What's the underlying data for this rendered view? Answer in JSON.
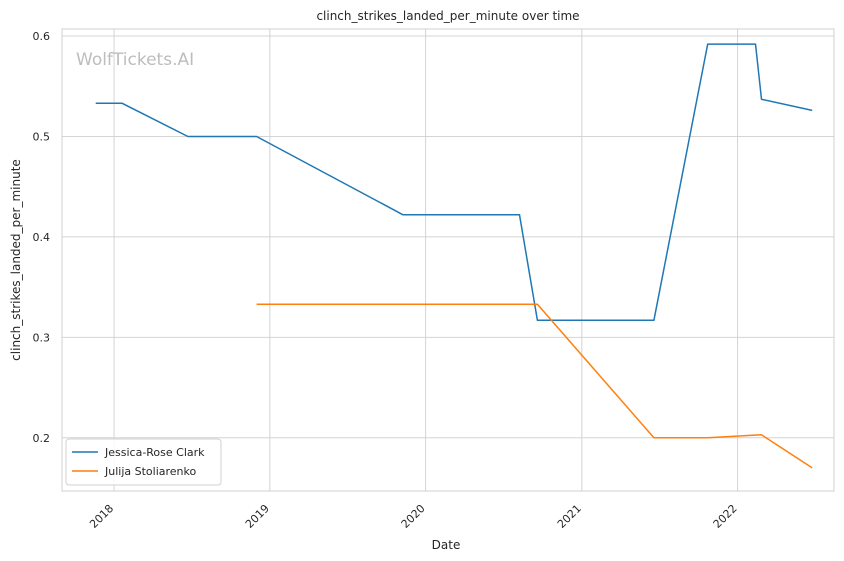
{
  "chart_data": {
    "type": "line",
    "title": "clinch_strikes_landed_per_minute over time",
    "xlabel": "Date",
    "ylabel": "clinch_strikes_landed_per_minute",
    "watermark": "WolfTickets.AI",
    "xlim": [
      "2017-09-01",
      "2022-08-15"
    ],
    "ylim": [
      0.147,
      0.607
    ],
    "x_ticks": [
      "2018-01-01",
      "2019-01-01",
      "2020-01-01",
      "2021-01-01",
      "2022-01-01"
    ],
    "x_tick_labels": [
      "2018",
      "2019",
      "2020",
      "2021",
      "2022"
    ],
    "y_ticks": [
      0.2,
      0.3,
      0.4,
      0.5,
      0.6
    ],
    "y_tick_labels": [
      "0.2",
      "0.3",
      "0.4",
      "0.5",
      "0.6"
    ],
    "grid": true,
    "legend_position": "lower-left",
    "series": [
      {
        "name": "Jessica-Rose Clark",
        "color": "#1f77b4",
        "points": [
          {
            "x": "2017-11-19",
            "y": 0.533
          },
          {
            "x": "2018-01-20",
            "y": 0.533
          },
          {
            "x": "2018-06-23",
            "y": 0.5
          },
          {
            "x": "2018-12-01",
            "y": 0.5
          },
          {
            "x": "2019-11-09",
            "y": 0.422
          },
          {
            "x": "2020-08-08",
            "y": 0.422
          },
          {
            "x": "2020-09-19",
            "y": 0.317
          },
          {
            "x": "2021-06-19",
            "y": 0.317
          },
          {
            "x": "2021-10-23",
            "y": 0.592
          },
          {
            "x": "2022-02-12",
            "y": 0.592
          },
          {
            "x": "2022-02-26",
            "y": 0.537
          },
          {
            "x": "2022-06-25",
            "y": 0.526
          }
        ]
      },
      {
        "name": "Julija Stoliarenko",
        "color": "#ff7f0e",
        "points": [
          {
            "x": "2018-12-01",
            "y": 0.333
          },
          {
            "x": "2020-09-19",
            "y": 0.333
          },
          {
            "x": "2021-06-19",
            "y": 0.2
          },
          {
            "x": "2021-10-23",
            "y": 0.2
          },
          {
            "x": "2022-02-26",
            "y": 0.203
          },
          {
            "x": "2022-06-25",
            "y": 0.17
          }
        ]
      }
    ]
  }
}
